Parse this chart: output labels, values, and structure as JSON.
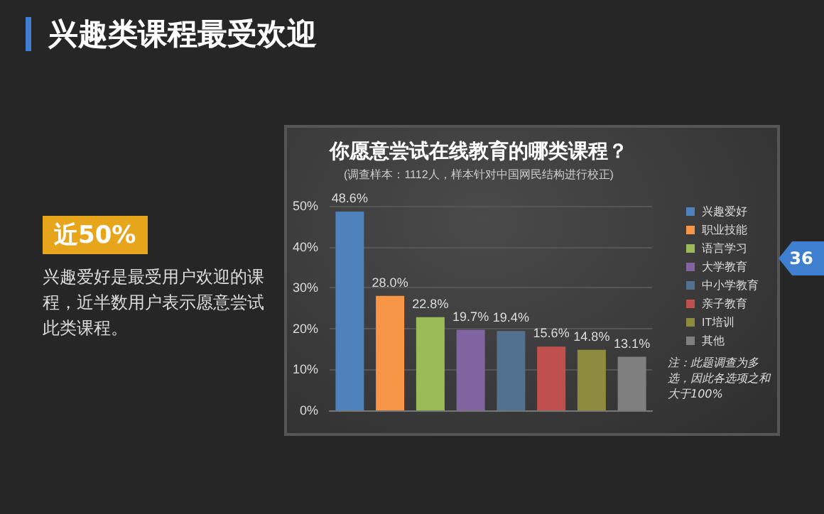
{
  "chart_data": {
    "type": "bar",
    "title": "你愿意尝试在线教育的哪类课程？",
    "subtitle": "(调查样本：1112人，样本针对中国网民结构进行校正)",
    "categories": [
      null,
      null,
      null,
      null,
      null,
      null,
      null,
      null
    ],
    "series": [
      {
        "name": "兴趣爱好",
        "color": "#4f81bd",
        "values": [
          48.6,
          null,
          null,
          null,
          null,
          null,
          null,
          null
        ],
        "value_labels": [
          "48.6%",
          null,
          null,
          null,
          null,
          null,
          null,
          null
        ]
      },
      {
        "name": "职业技能",
        "color": "#f79646",
        "values": [
          null,
          28.0,
          null,
          null,
          null,
          null,
          null,
          null
        ],
        "value_labels": [
          null,
          "28.0%",
          null,
          null,
          null,
          null,
          null,
          null
        ]
      },
      {
        "name": "语言学习",
        "color": "#9bbb59",
        "values": [
          null,
          null,
          22.8,
          null,
          null,
          null,
          null,
          null
        ],
        "value_labels": [
          null,
          null,
          "22.8%",
          null,
          null,
          null,
          null,
          null
        ]
      },
      {
        "name": "大学教育",
        "color": "#8064a2",
        "values": [
          null,
          null,
          null,
          19.7,
          null,
          null,
          null,
          null
        ],
        "value_labels": [
          null,
          null,
          null,
          "19.7%",
          null,
          null,
          null,
          null
        ]
      },
      {
        "name": "中小学教育",
        "color": "#52708f",
        "values": [
          null,
          null,
          null,
          null,
          19.4,
          null,
          null,
          null
        ],
        "value_labels": [
          null,
          null,
          null,
          null,
          "19.4%",
          null,
          null,
          null
        ]
      },
      {
        "name": "亲子教育",
        "color": "#c0504d",
        "values": [
          null,
          null,
          null,
          null,
          null,
          15.6,
          null,
          null
        ],
        "value_labels": [
          null,
          null,
          null,
          null,
          null,
          "15.6%",
          null,
          null
        ]
      },
      {
        "name": "IT培训",
        "color": "#8f8b3e",
        "values": [
          null,
          null,
          null,
          null,
          null,
          null,
          14.8,
          null
        ],
        "value_labels": [
          null,
          null,
          null,
          null,
          null,
          null,
          "14.8%",
          null
        ]
      },
      {
        "name": "其他",
        "color": "#7f7f7f",
        "values": [
          null,
          null,
          null,
          null,
          null,
          null,
          null,
          13.1
        ],
        "value_labels": [
          null,
          null,
          null,
          null,
          null,
          null,
          null,
          "13.1%"
        ]
      }
    ],
    "ylim": [
      0,
      50
    ],
    "yticks": [
      {
        "value": 0,
        "label": "0%"
      },
      {
        "value": 10,
        "label": "10%"
      },
      {
        "value": 20,
        "label": "20%"
      },
      {
        "value": 30,
        "label": "30%"
      },
      {
        "value": 40,
        "label": "40%"
      },
      {
        "value": 50,
        "label": "50%"
      }
    ],
    "grid": "y",
    "legend": "right",
    "tick_labels": "y",
    "annotations": [
      "兴趣类课程最受欢迎",
      "近50%",
      "兴趣爱好是最受用户欢迎的课程，近半数用户表示愿意尝试此类课程。",
      "注：此题调查为多选，因此各选项之和大于100%",
      "36"
    ]
  }
}
